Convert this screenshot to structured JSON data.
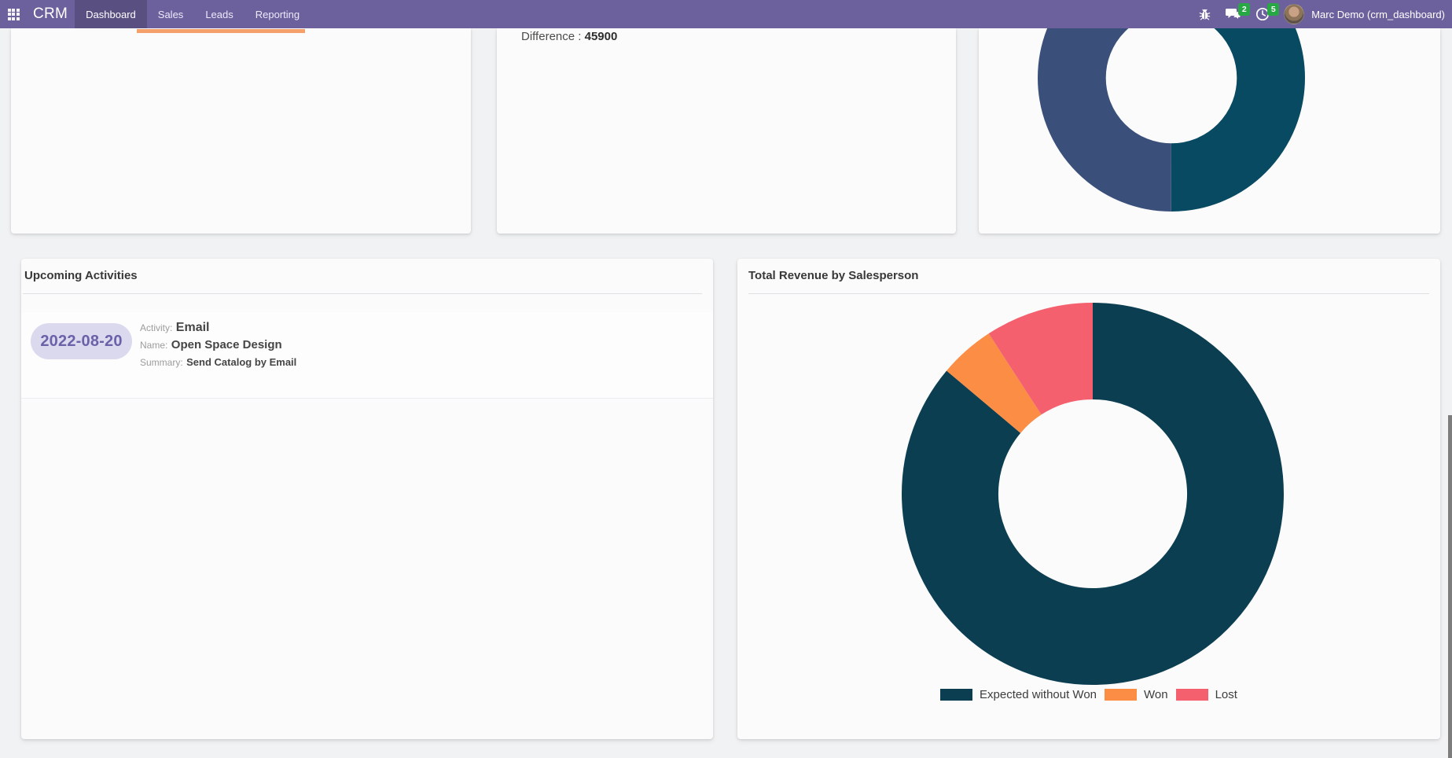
{
  "navbar": {
    "app_name": "CRM",
    "menu": [
      {
        "label": "Dashboard",
        "active": true
      },
      {
        "label": "Sales",
        "active": false
      },
      {
        "label": "Leads",
        "active": false
      },
      {
        "label": "Reporting",
        "active": false
      }
    ],
    "systray": {
      "message_badge": "2",
      "activity_badge": "5",
      "user_name": "Marc Demo (crm_dashboard)"
    },
    "colors": {
      "bar": "#6d619d",
      "badge": "#28a745"
    }
  },
  "cards_row1": {
    "progress_bar_color": "#f5a06b",
    "difference_label": "Difference : ",
    "difference_value": "45900"
  },
  "upcoming": {
    "title": "Upcoming Activities",
    "items": [
      {
        "date": "2022-08-20",
        "activity_label": "Activity:",
        "activity_value": "Email",
        "name_label": "Name:",
        "name_value": "Open Space Design",
        "summary_label": "Summary:",
        "summary_value": "Send Catalog by Email"
      }
    ]
  },
  "revenue": {
    "title": "Total Revenue by Salesperson"
  },
  "chart_data": [
    {
      "id": "total-revenue-by-salesperson",
      "type": "pie",
      "subtype": "donut",
      "title": "Total Revenue by Salesperson",
      "labels": [
        "Expected without Won",
        "Won",
        "Lost"
      ],
      "values_pct": [
        86.1,
        4.7,
        9.2
      ],
      "colors": [
        "#0c3e52",
        "#fb8d45",
        "#f4606e"
      ],
      "legend_position": "bottom",
      "hole_ratio": 0.494,
      "start_angle_deg": 0,
      "direction": "clockwise"
    },
    {
      "id": "top-right-partial-donut",
      "type": "pie",
      "subtype": "donut",
      "title": "",
      "labels": [
        "",
        ""
      ],
      "values_pct": [
        50,
        50
      ],
      "colors": [
        "#074a61",
        "#3a507a"
      ],
      "legend_position": "none",
      "hole_ratio": 0.49,
      "start_angle_deg": 0,
      "direction": "clockwise",
      "note_visual": "cut off at top of viewport by navbar"
    }
  ]
}
